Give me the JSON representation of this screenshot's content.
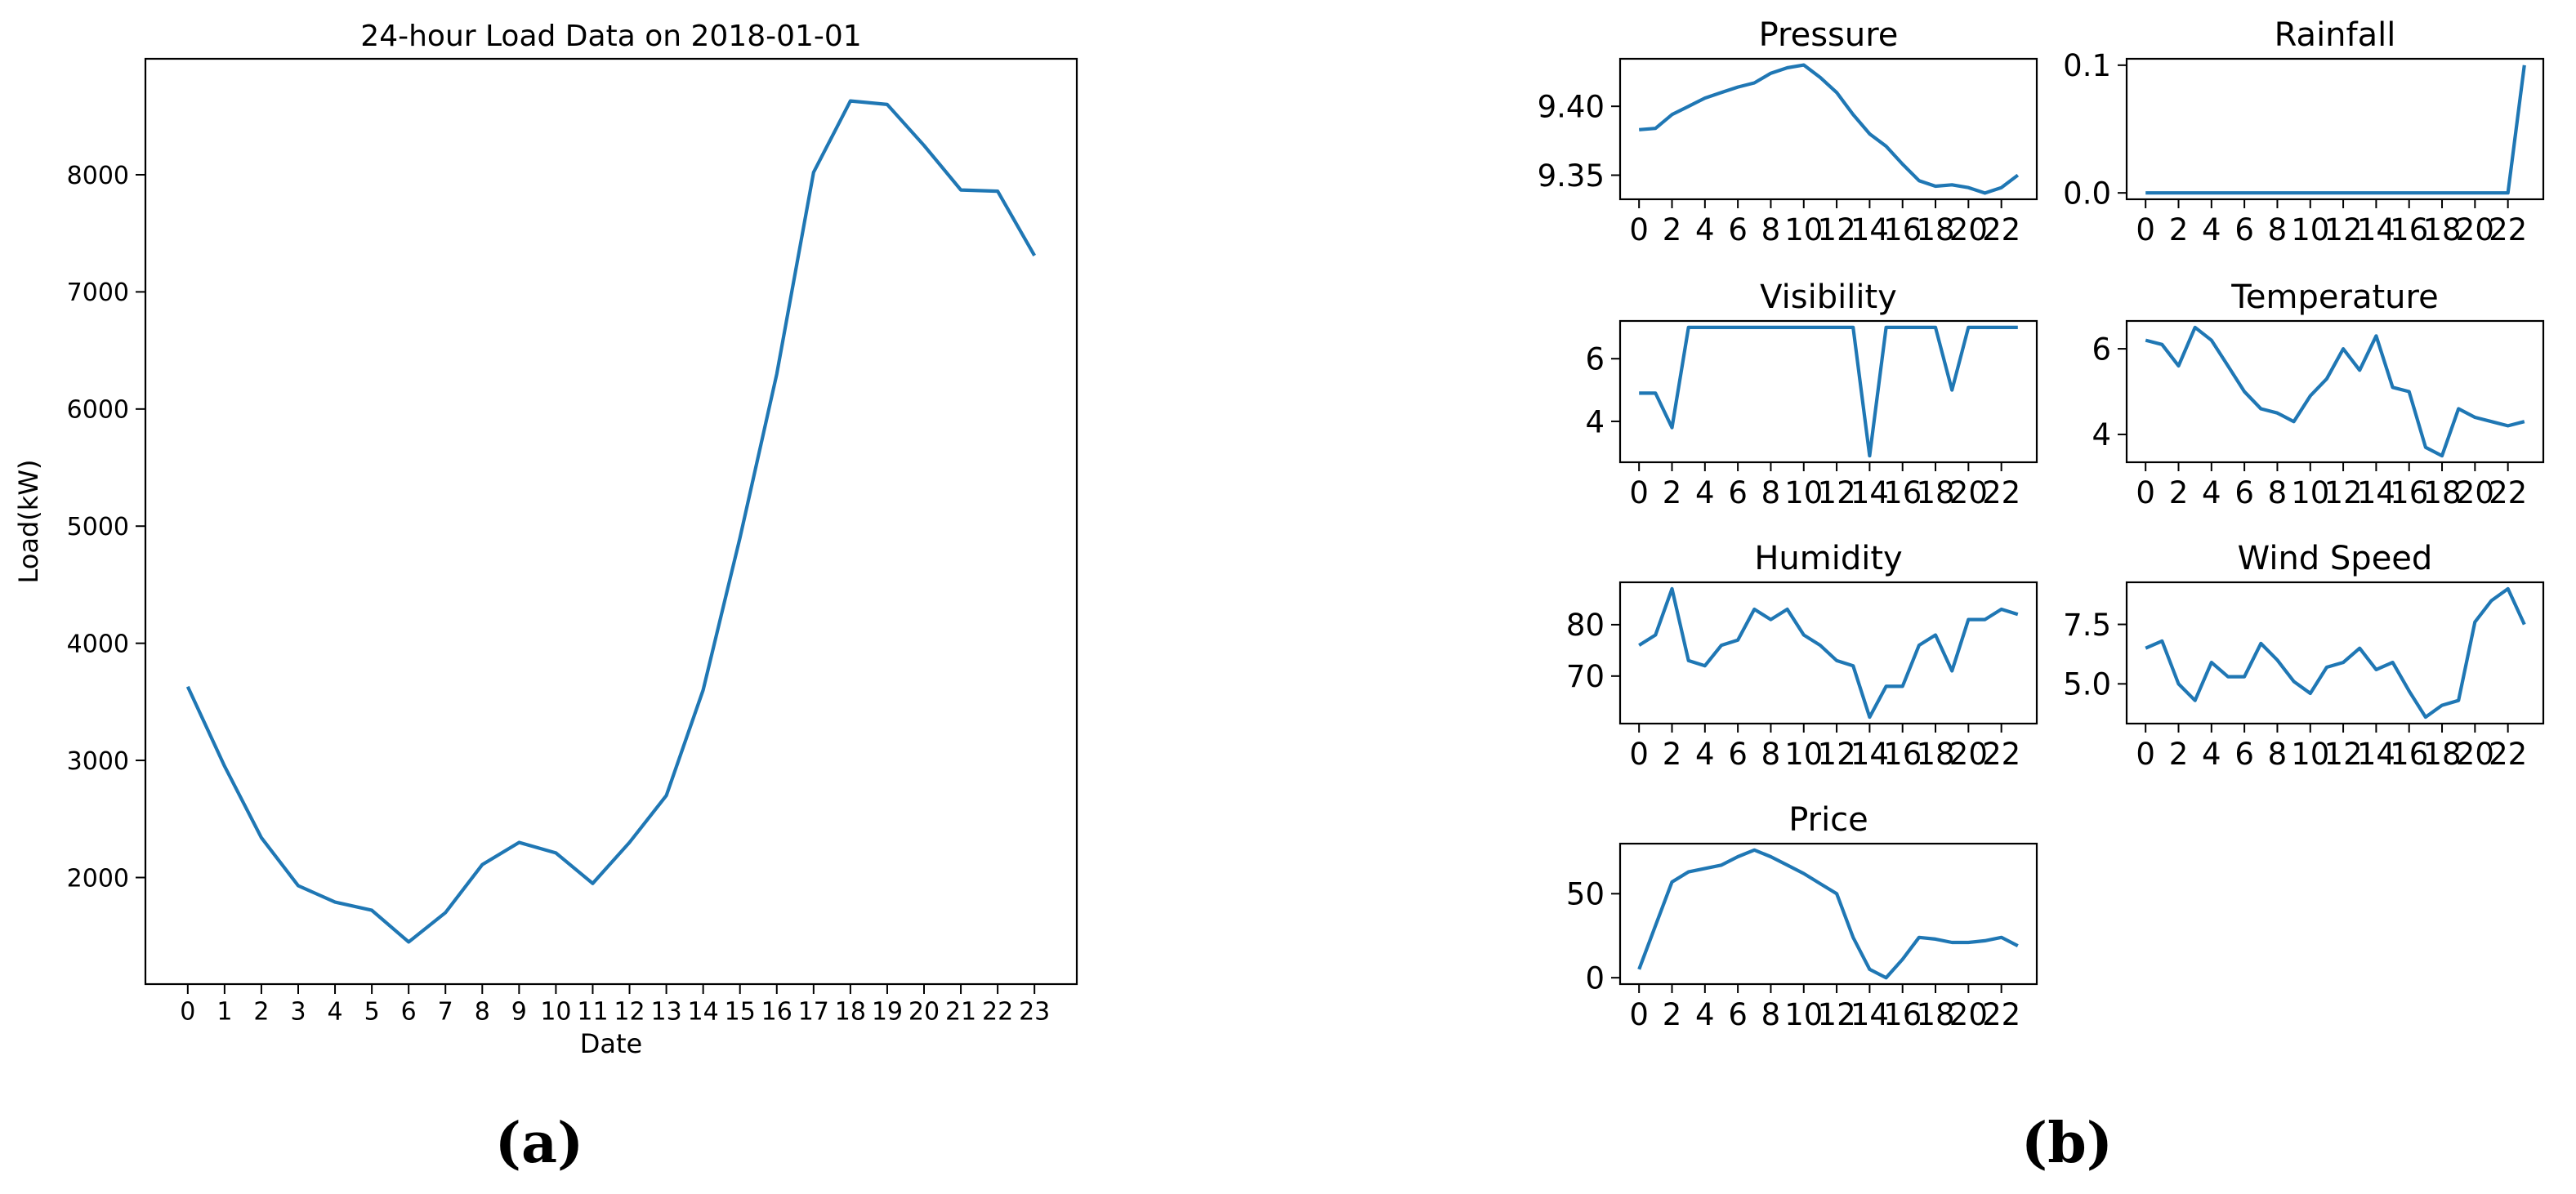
{
  "figure": {
    "line_color": "#1f77b4",
    "panel_a_label": "(a)",
    "panel_b_label": "(b)"
  },
  "chart_data": [
    {
      "id": "load",
      "type": "line",
      "title": "24-hour Load Data on 2018-01-01",
      "xlabel": "Date",
      "ylabel": "Load(kW)",
      "x": [
        0,
        1,
        2,
        3,
        4,
        5,
        6,
        7,
        8,
        9,
        10,
        11,
        12,
        13,
        14,
        15,
        16,
        17,
        18,
        19,
        20,
        21,
        22,
        23
      ],
      "x_ticks": [
        0,
        1,
        2,
        3,
        4,
        5,
        6,
        7,
        8,
        9,
        10,
        11,
        12,
        13,
        14,
        15,
        16,
        17,
        18,
        19,
        20,
        21,
        22,
        23
      ],
      "y": [
        3630,
        2950,
        2340,
        1930,
        1790,
        1720,
        1450,
        1700,
        2110,
        2300,
        2210,
        1950,
        2300,
        2700,
        3600,
        4900,
        6300,
        8020,
        8630,
        8600,
        8250,
        7870,
        7860,
        7310
      ],
      "xlim": [
        -1.15,
        24.15
      ],
      "ylim": [
        1090,
        8990
      ],
      "y_ticks": [
        2000,
        3000,
        4000,
        5000,
        6000,
        7000,
        8000
      ],
      "y_tick_labels": [
        "2000",
        "3000",
        "4000",
        "5000",
        "6000",
        "7000",
        "8000"
      ],
      "grid": false
    },
    {
      "id": "pressure",
      "type": "line",
      "title": "Pressure",
      "x": [
        0,
        1,
        2,
        3,
        4,
        5,
        6,
        7,
        8,
        9,
        10,
        11,
        12,
        13,
        14,
        15,
        16,
        17,
        18,
        19,
        20,
        21,
        22,
        23
      ],
      "x_ticks": [
        0,
        2,
        4,
        6,
        8,
        10,
        12,
        14,
        16,
        18,
        20,
        22
      ],
      "y": [
        9.383,
        9.384,
        9.394,
        9.4,
        9.406,
        9.41,
        9.414,
        9.417,
        9.424,
        9.428,
        9.43,
        9.421,
        9.41,
        9.394,
        9.38,
        9.371,
        9.358,
        9.346,
        9.342,
        9.343,
        9.341,
        9.337,
        9.341,
        9.35
      ],
      "xlim": [
        -1.15,
        24.15
      ],
      "ylim": [
        9.3325,
        9.4345
      ],
      "y_ticks": [
        9.35,
        9.4
      ],
      "y_tick_labels": [
        "9.35",
        "9.40"
      ],
      "grid": false
    },
    {
      "id": "rainfall",
      "type": "line",
      "title": "Rainfall",
      "x": [
        0,
        1,
        2,
        3,
        4,
        5,
        6,
        7,
        8,
        9,
        10,
        11,
        12,
        13,
        14,
        15,
        16,
        17,
        18,
        19,
        20,
        21,
        22,
        23
      ],
      "x_ticks": [
        0,
        2,
        4,
        6,
        8,
        10,
        12,
        14,
        16,
        18,
        20,
        22
      ],
      "y": [
        0,
        0,
        0,
        0,
        0,
        0,
        0,
        0,
        0,
        0,
        0,
        0,
        0,
        0,
        0,
        0,
        0,
        0,
        0,
        0,
        0,
        0,
        0,
        0.1
      ],
      "xlim": [
        -1.15,
        24.15
      ],
      "ylim": [
        -0.005,
        0.105
      ],
      "y_ticks": [
        0.0,
        0.1
      ],
      "y_tick_labels": [
        "0.0",
        "0.1"
      ],
      "grid": false
    },
    {
      "id": "visibility",
      "type": "line",
      "title": "Visibility",
      "x": [
        0,
        1,
        2,
        3,
        4,
        5,
        6,
        7,
        8,
        9,
        10,
        11,
        12,
        13,
        14,
        15,
        16,
        17,
        18,
        19,
        20,
        21,
        22,
        23
      ],
      "x_ticks": [
        0,
        2,
        4,
        6,
        8,
        10,
        12,
        14,
        16,
        18,
        20,
        22
      ],
      "y": [
        4.9,
        4.9,
        3.8,
        7,
        7,
        7,
        7,
        7,
        7,
        7,
        7,
        7,
        7,
        7,
        2.9,
        7,
        7,
        7,
        7,
        5.0,
        7,
        7,
        7,
        7
      ],
      "xlim": [
        -1.15,
        24.15
      ],
      "ylim": [
        2.695,
        7.205
      ],
      "y_ticks": [
        4,
        6
      ],
      "y_tick_labels": [
        "4",
        "6"
      ],
      "grid": false
    },
    {
      "id": "temperature",
      "type": "line",
      "title": "Temperature",
      "x": [
        0,
        1,
        2,
        3,
        4,
        5,
        6,
        7,
        8,
        9,
        10,
        11,
        12,
        13,
        14,
        15,
        16,
        17,
        18,
        19,
        20,
        21,
        22,
        23
      ],
      "x_ticks": [
        0,
        2,
        4,
        6,
        8,
        10,
        12,
        14,
        16,
        18,
        20,
        22
      ],
      "y": [
        6.2,
        6.1,
        5.6,
        6.5,
        6.2,
        5.6,
        5.0,
        4.6,
        4.5,
        4.3,
        4.9,
        5.3,
        6.0,
        5.5,
        6.3,
        5.1,
        5.0,
        3.7,
        3.5,
        4.6,
        4.4,
        4.3,
        4.2,
        4.3
      ],
      "xlim": [
        -1.15,
        24.15
      ],
      "ylim": [
        3.35,
        6.65
      ],
      "y_ticks": [
        4,
        6
      ],
      "y_tick_labels": [
        "4",
        "6"
      ],
      "grid": false
    },
    {
      "id": "humidity",
      "type": "line",
      "title": "Humidity",
      "x": [
        0,
        1,
        2,
        3,
        4,
        5,
        6,
        7,
        8,
        9,
        10,
        11,
        12,
        13,
        14,
        15,
        16,
        17,
        18,
        19,
        20,
        21,
        22,
        23
      ],
      "x_ticks": [
        0,
        2,
        4,
        6,
        8,
        10,
        12,
        14,
        16,
        18,
        20,
        22
      ],
      "y": [
        76,
        78,
        87,
        73,
        72,
        76,
        77,
        83,
        81,
        83,
        78,
        76,
        73,
        72,
        62,
        68,
        68,
        76,
        78,
        71,
        81,
        81,
        83,
        82
      ],
      "xlim": [
        -1.15,
        24.15
      ],
      "ylim": [
        60.75,
        88.25
      ],
      "y_ticks": [
        70,
        80
      ],
      "y_tick_labels": [
        "70",
        "80"
      ],
      "grid": false
    },
    {
      "id": "wind_speed",
      "type": "line",
      "title": "Wind Speed",
      "x": [
        0,
        1,
        2,
        3,
        4,
        5,
        6,
        7,
        8,
        9,
        10,
        11,
        12,
        13,
        14,
        15,
        16,
        17,
        18,
        19,
        20,
        21,
        22,
        23
      ],
      "x_ticks": [
        0,
        2,
        4,
        6,
        8,
        10,
        12,
        14,
        16,
        18,
        20,
        22
      ],
      "y": [
        6.5,
        6.8,
        5.0,
        4.3,
        5.9,
        5.3,
        5.3,
        6.7,
        6.0,
        5.1,
        4.6,
        5.7,
        5.9,
        6.5,
        5.6,
        5.9,
        4.7,
        3.6,
        4.1,
        4.3,
        7.6,
        8.5,
        9.0,
        7.5
      ],
      "xlim": [
        -1.15,
        24.15
      ],
      "ylim": [
        3.33,
        9.27
      ],
      "y_ticks": [
        5.0,
        7.5
      ],
      "y_tick_labels": [
        "5.0",
        "7.5"
      ],
      "grid": false
    },
    {
      "id": "price",
      "type": "line",
      "title": "Price",
      "x": [
        0,
        1,
        2,
        3,
        4,
        5,
        6,
        7,
        8,
        9,
        10,
        11,
        12,
        13,
        14,
        15,
        16,
        17,
        18,
        19,
        20,
        21,
        22,
        23
      ],
      "x_ticks": [
        0,
        2,
        4,
        6,
        8,
        10,
        12,
        14,
        16,
        18,
        20,
        22
      ],
      "y": [
        5,
        31,
        57,
        63,
        65,
        67,
        72,
        76,
        72,
        67,
        62,
        56,
        50,
        24,
        5,
        0,
        11,
        24,
        23,
        21,
        21,
        22,
        24,
        19
      ],
      "xlim": [
        -1.15,
        24.15
      ],
      "ylim": [
        -3.8,
        79.8
      ],
      "y_ticks": [
        0,
        50
      ],
      "y_tick_labels": [
        "0",
        "50"
      ],
      "grid": false
    }
  ]
}
